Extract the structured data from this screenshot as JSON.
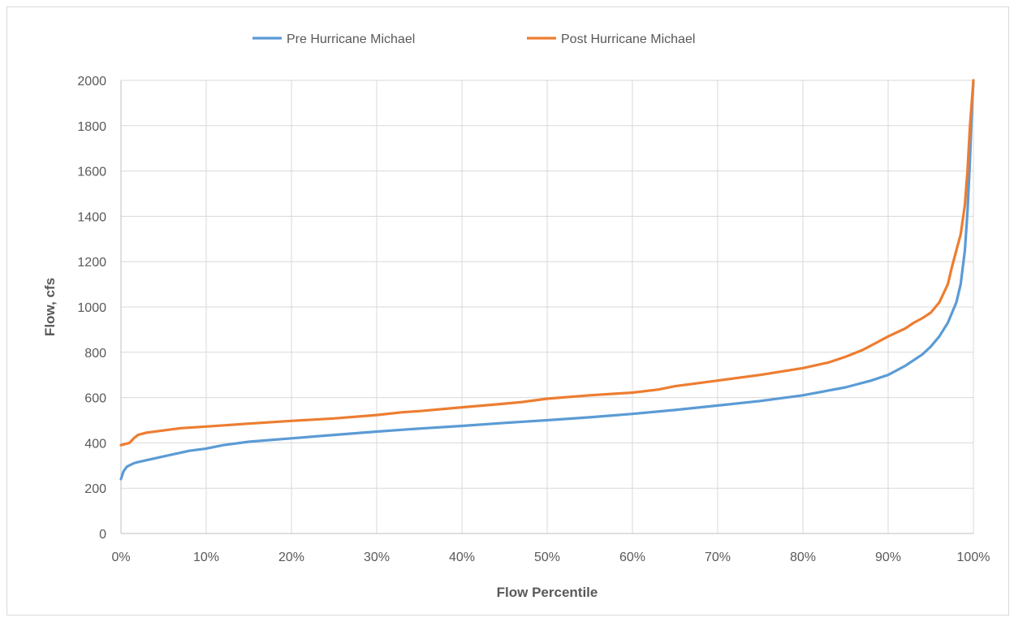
{
  "chart_data": {
    "type": "line",
    "title": "",
    "xlabel": "Flow Percentile",
    "ylabel": "Flow, cfs",
    "xlim": [
      0,
      100
    ],
    "ylim": [
      0,
      2000
    ],
    "x_ticks": [
      "0%",
      "10%",
      "20%",
      "30%",
      "40%",
      "50%",
      "60%",
      "70%",
      "80%",
      "90%",
      "100%"
    ],
    "y_ticks": [
      "0",
      "200",
      "400",
      "600",
      "800",
      "1000",
      "1200",
      "1400",
      "1600",
      "1800",
      "2000"
    ],
    "grid": true,
    "legend_position": "top",
    "series": [
      {
        "name": "Pre Hurricane Michael",
        "color": "#5b9bd5",
        "x": [
          0,
          0.3,
          0.7,
          1.5,
          2,
          5,
          8,
          10,
          12,
          15,
          20,
          25,
          30,
          35,
          40,
          45,
          50,
          55,
          60,
          65,
          70,
          75,
          80,
          85,
          88,
          90,
          92,
          94,
          95,
          96,
          97,
          98,
          98.5,
          99,
          99.3,
          99.6,
          99.8,
          100
        ],
        "y": [
          240,
          275,
          295,
          310,
          315,
          340,
          365,
          375,
          390,
          405,
          420,
          435,
          450,
          463,
          475,
          488,
          500,
          513,
          528,
          545,
          565,
          585,
          610,
          645,
          675,
          700,
          740,
          790,
          825,
          870,
          930,
          1020,
          1100,
          1250,
          1420,
          1650,
          1850,
          2000
        ]
      },
      {
        "name": "Post Hurricane Michael",
        "color": "#ed7d31",
        "x": [
          0,
          1,
          1.5,
          2,
          3,
          5,
          7,
          10,
          15,
          20,
          25,
          30,
          33,
          35,
          40,
          45,
          47,
          50,
          55,
          60,
          63,
          65,
          70,
          75,
          80,
          83,
          85,
          87,
          89,
          90,
          92,
          93,
          94,
          95,
          96,
          97,
          97.5,
          98,
          98.5,
          99,
          99.3,
          99.6,
          99.8,
          100
        ],
        "y": [
          390,
          400,
          420,
          435,
          445,
          455,
          465,
          472,
          485,
          497,
          508,
          523,
          535,
          540,
          557,
          573,
          580,
          595,
          610,
          622,
          635,
          650,
          675,
          700,
          730,
          755,
          780,
          810,
          850,
          870,
          905,
          930,
          950,
          975,
          1020,
          1100,
          1180,
          1250,
          1320,
          1450,
          1600,
          1800,
          1900,
          2000
        ]
      }
    ]
  }
}
